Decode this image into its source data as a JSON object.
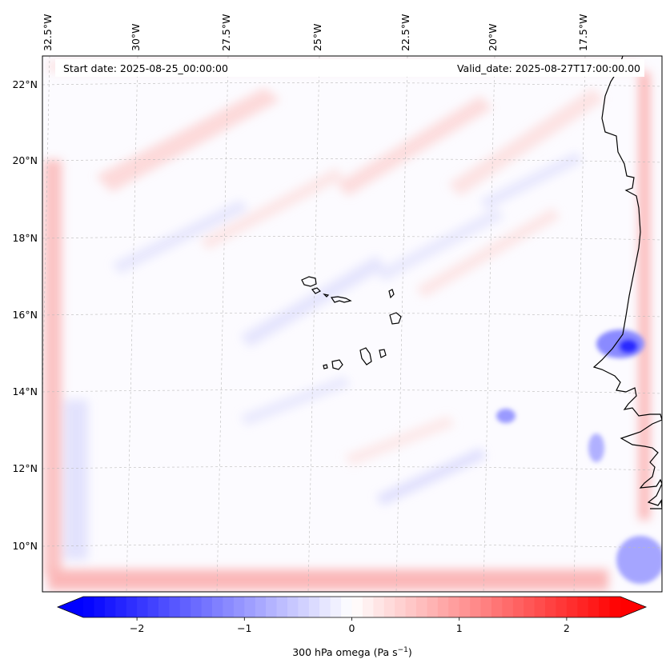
{
  "map": {
    "start_date": "Start date: 2025-08-25_00:00:00",
    "valid_date": "Valid_date: 2025-08-27T17:00:00.00",
    "lon_labels": [
      "32.5°W",
      "30°W",
      "27.5°W",
      "25°W",
      "22.5°W",
      "20°W",
      "17.5°W"
    ],
    "lat_labels": [
      "22°N",
      "20°N",
      "18°N",
      "16°N",
      "14°N",
      "12°N",
      "10°N"
    ],
    "extent": {
      "lon_min": -33.0,
      "lon_max": -15.0,
      "lat_min": 8.8,
      "lat_max": 22.8
    },
    "variable": "300 hPa omega"
  },
  "colorbar": {
    "label_main": "300 hPa omega (Pa s",
    "label_sup": "−1",
    "label_close": ")",
    "ticks": [
      {
        "value": -2,
        "label": "−2"
      },
      {
        "value": -1,
        "label": "−1"
      },
      {
        "value": 0,
        "label": "0"
      },
      {
        "value": 1,
        "label": "1"
      },
      {
        "value": 2,
        "label": "2"
      }
    ],
    "vmin": -2.5,
    "vmax": 2.5,
    "extend": "both",
    "low_color": "#0000ff",
    "mid_color": "#ffffff",
    "high_color": "#ff0000"
  },
  "colors": {
    "coastline": "#000000",
    "gridline": "#bbbbbb"
  }
}
